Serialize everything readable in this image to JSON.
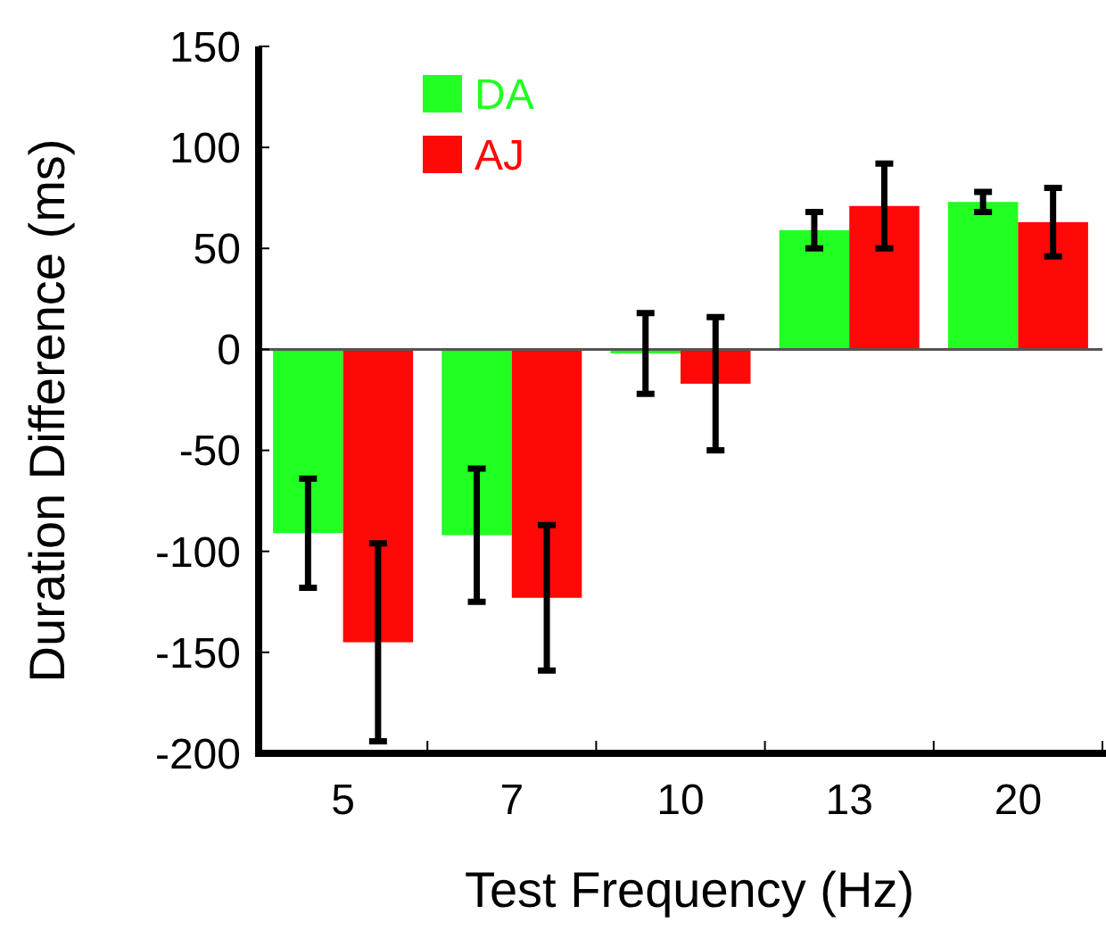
{
  "chart_data": {
    "type": "bar",
    "xlabel": "Test Frequency (Hz)",
    "ylabel": "Duration Difference (ms)",
    "categories": [
      "5",
      "7",
      "10",
      "13",
      "20"
    ],
    "series": [
      {
        "name": "DA",
        "color": "#22ff22",
        "values": [
          -91,
          -92,
          -2,
          59,
          73
        ],
        "errors": [
          27,
          33,
          20,
          9,
          5
        ]
      },
      {
        "name": "AJ",
        "color": "#ff0808",
        "values": [
          -145,
          -123,
          -17,
          71,
          63
        ],
        "errors": [
          49,
          36,
          33,
          21,
          17
        ]
      }
    ],
    "ylim": [
      -200,
      150
    ],
    "yticks": [
      -200,
      -150,
      -100,
      -50,
      0,
      50,
      100,
      150
    ],
    "ref_lines": [
      {
        "axis": "y",
        "value": 0,
        "color": "#555555"
      }
    ],
    "grid": false,
    "legend": "top left"
  }
}
